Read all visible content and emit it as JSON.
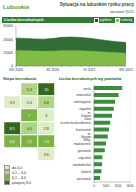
{
  "header": {
    "region": "Lubuskie",
    "title": "Sytuacja na lubuskim rynku pracy",
    "subtitle": "sierpień 2021"
  },
  "chart_data": [
    {
      "type": "area",
      "title": "Liczba bezrobotnych",
      "categories": [
        "VIII 2020",
        null,
        null,
        null,
        "XII 2020",
        null,
        null,
        null,
        "IV 2021",
        null,
        null,
        null,
        "VIII 2021"
      ],
      "series": [
        {
          "name": "ogółem",
          "color": "#1b5e20",
          "values": [
            20900,
            20700,
            20300,
            20100,
            20600,
            21500,
            21700,
            21400,
            20800,
            19900,
            19000,
            18200,
            17600
          ]
        },
        {
          "name": "kobiety",
          "color": "#8bc34a",
          "values": [
            11500,
            11400,
            11200,
            11000,
            11100,
            11400,
            11500,
            11400,
            11100,
            10700,
            10300,
            9900,
            9600
          ]
        }
      ],
      "ylim": [
        0,
        30000
      ],
      "yticks": [
        0,
        10000,
        20000,
        30000
      ],
      "grid": true,
      "legend": "top right"
    },
    {
      "type": "bar",
      "orientation": "horizontal",
      "title": "Liczba bezrobotnych wg powiatów",
      "categories": [
        "żarski",
        "nowosolski",
        "zielonogórski",
        "żagański",
        "m. Zielona Góra",
        "strzelecko-drezdenecki",
        "krośnieński",
        "m. Gorzów Wlkp.",
        "międzyrzecki",
        "gorzowski",
        "sulęciński",
        "świebodziński",
        "słubicki",
        "wschowski"
      ],
      "values": [
        2350,
        2050,
        1750,
        1650,
        1500,
        1350,
        1250,
        1150,
        1000,
        900,
        700,
        680,
        620,
        500
      ],
      "color": "#388e3c",
      "xlim": [
        0,
        3000
      ],
      "xticks": [
        0,
        1000,
        2000,
        3000
      ],
      "grid": true
    }
  ],
  "map": {
    "title": "Stopa bezrobocia",
    "values": [
      5.3,
      10.0,
      3.9,
      2.4,
      4.8,
      7.0,
      3.0,
      8.5,
      4.4,
      2.8,
      6.6,
      7.2,
      7.4,
      3.6
    ],
    "classes": [
      {
        "label": "do 4,0",
        "max": 4,
        "color": "#dcedc8"
      },
      {
        "label": "4,1 – 6,0",
        "max": 6,
        "color": "#aed581"
      },
      {
        "label": "6,1 – 8,0",
        "max": 8,
        "color": "#7cb342"
      },
      {
        "label": "powyżej 8,0",
        "max": null,
        "color": "#33691e"
      }
    ]
  }
}
